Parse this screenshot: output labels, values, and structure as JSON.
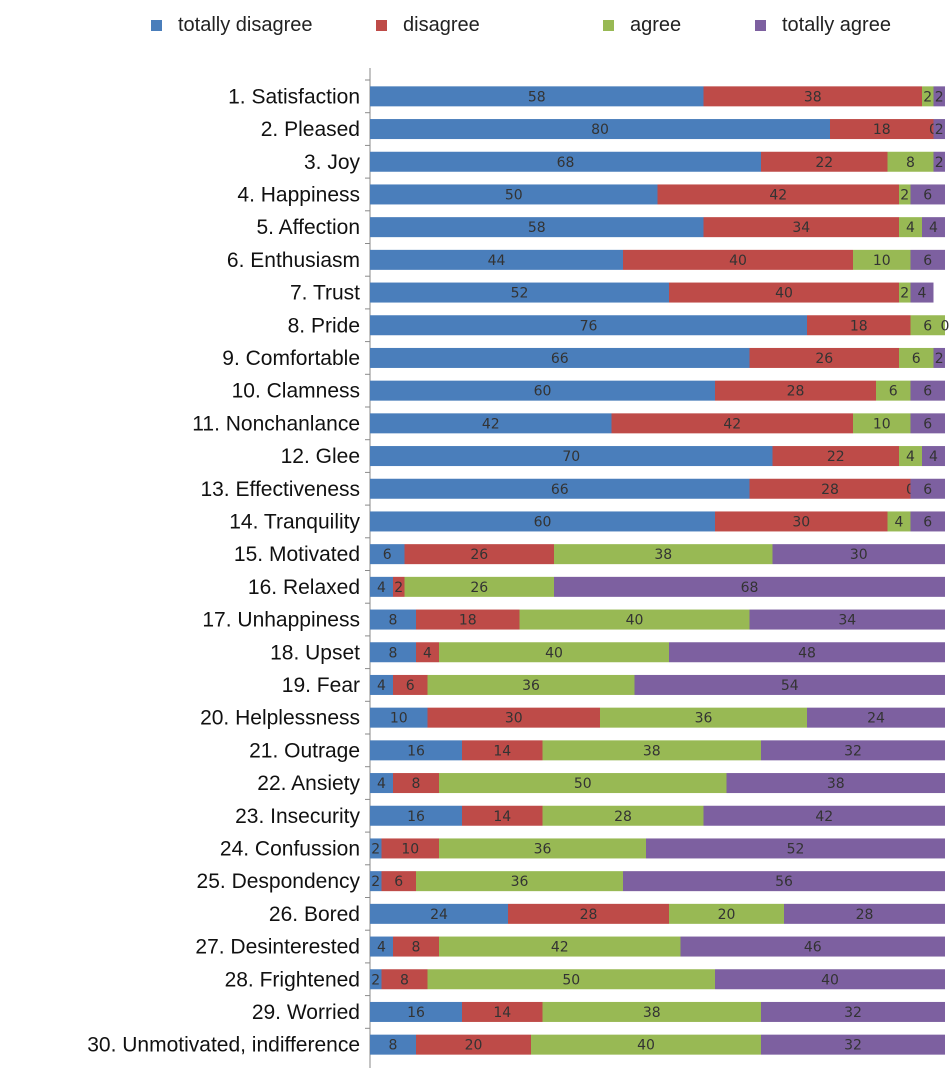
{
  "chart_data": {
    "type": "bar",
    "orientation": "horizontal",
    "stacked": true,
    "title": "",
    "xlabel": "",
    "ylabel": "",
    "legend_position": "top",
    "grid": false,
    "categories": [
      "1. Satisfaction",
      "2. Pleased",
      "3. Joy",
      "4. Happiness",
      "5. Affection",
      "6. Enthusiasm",
      "7. Trust",
      "8. Pride",
      "9. Comfortable",
      "10. Clamness",
      "11. Nonchanlance",
      "12. Glee",
      "13. Effectiveness",
      "14. Tranquility",
      "15. Motivated",
      "16. Relaxed",
      "17. Unhappiness",
      "18. Upset",
      "19. Fear",
      "20. Helplessness",
      "21. Outrage",
      "22. Ansiety",
      "23. Insecurity",
      "24. Confussion",
      "25. Despondency",
      "26. Bored",
      "27. Desinterested",
      "28. Frightened",
      "29. Worried",
      "30. Unmotivated, indifference"
    ],
    "series": [
      {
        "name": "totally disagree",
        "color": "#4a7ebb",
        "values": [
          58,
          80,
          68,
          50,
          58,
          44,
          52,
          76,
          66,
          60,
          42,
          70,
          66,
          60,
          6,
          4,
          8,
          8,
          4,
          10,
          16,
          4,
          16,
          2,
          2,
          24,
          4,
          2,
          16,
          8
        ]
      },
      {
        "name": "disagree",
        "color": "#be4b48",
        "values": [
          38,
          18,
          22,
          42,
          34,
          40,
          40,
          18,
          26,
          28,
          42,
          22,
          28,
          30,
          26,
          2,
          18,
          4,
          6,
          30,
          14,
          8,
          14,
          10,
          6,
          28,
          8,
          8,
          14,
          20
        ]
      },
      {
        "name": "agree",
        "color": "#98b954",
        "values": [
          2,
          0,
          8,
          2,
          4,
          10,
          2,
          6,
          6,
          6,
          10,
          4,
          0,
          4,
          38,
          26,
          40,
          40,
          36,
          36,
          38,
          50,
          28,
          36,
          36,
          20,
          42,
          50,
          38,
          40
        ]
      },
      {
        "name": "totally agree",
        "color": "#7d60a0",
        "values": [
          2,
          2,
          2,
          6,
          4,
          6,
          4,
          0,
          2,
          6,
          6,
          4,
          6,
          6,
          30,
          68,
          34,
          48,
          54,
          24,
          32,
          38,
          42,
          52,
          56,
          28,
          46,
          40,
          32,
          32
        ]
      }
    ]
  }
}
